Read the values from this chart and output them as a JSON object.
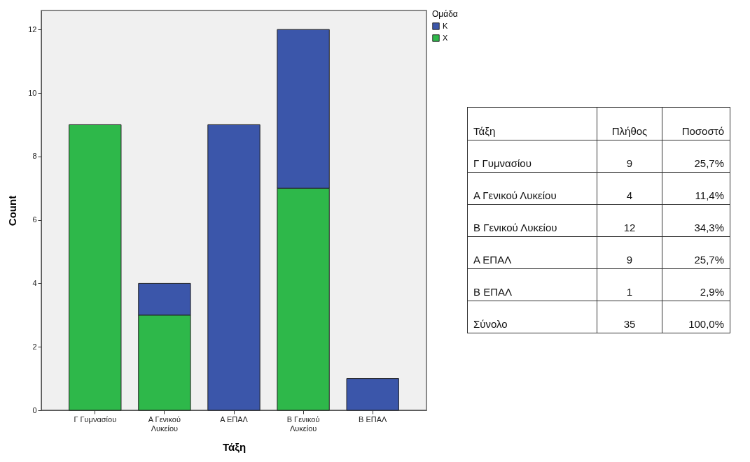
{
  "chart_data": [
    {
      "type": "bar",
      "xlabel": "Τάξη",
      "ylabel": "Count",
      "legend_title": "Ομάδα",
      "legend": "top right",
      "stacked": true,
      "grid": false,
      "categories": [
        "Γ Γυμνασίου",
        "Α Γενικού Λυκείου",
        "Α ΕΠΑΛ",
        "Β Γενικού Λυκείου",
        "Β ΕΠΑΛ"
      ],
      "ylim": [
        0,
        12.6
      ],
      "yticks": [
        0,
        2,
        4,
        6,
        8,
        10,
        12
      ],
      "series": [
        {
          "name": "Χ",
          "color": "#2eb84a",
          "values": [
            9,
            3,
            0,
            7,
            0
          ]
        },
        {
          "name": "Κ",
          "color": "#3b56aa",
          "values": [
            0,
            1,
            9,
            5,
            1
          ]
        }
      ]
    },
    {
      "type": "other",
      "annotations": [
        "Τάξη",
        "Πλήθος",
        "Ποσοστό",
        "Γ Γυμνασίου",
        "9",
        "25,7%",
        "Α Γενικού Λυκείου",
        "4",
        "11,4%",
        "Β Γενικού Λυκείου",
        "12",
        "34,3%",
        "Α ΕΠΑΛ",
        "9",
        "25,7%",
        "Β ΕΠΑΛ",
        "1",
        "2,9%",
        "Σύνολο",
        "35",
        "100,0%"
      ]
    }
  ]
}
